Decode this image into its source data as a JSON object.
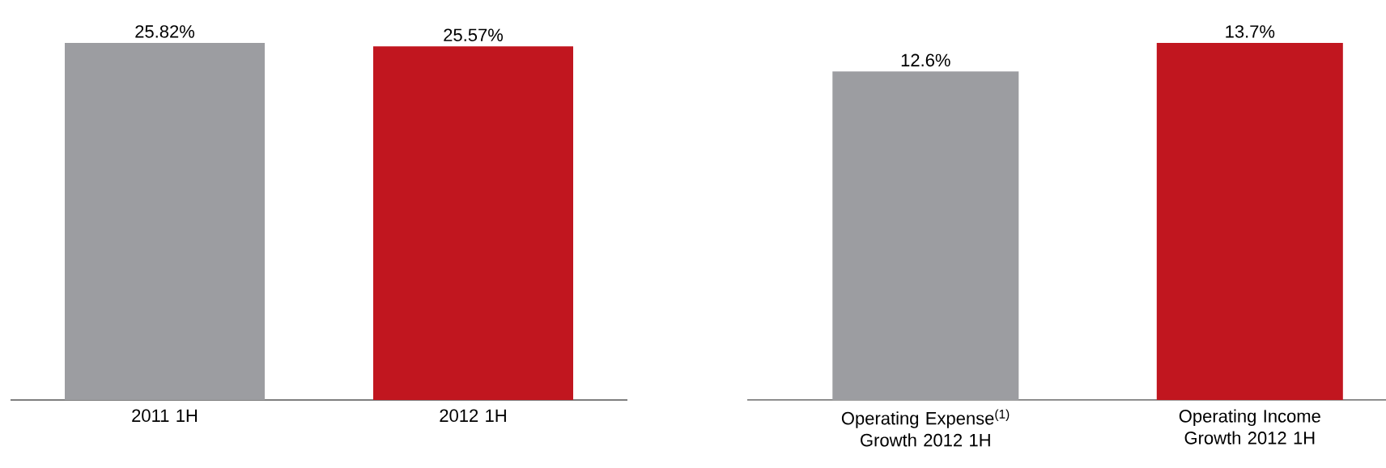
{
  "chart_data": [
    {
      "type": "bar",
      "categories": [
        "2011 1H",
        "2012 1H"
      ],
      "values": [
        25.82,
        25.57
      ],
      "colors": [
        "#9c9da1",
        "#c1161f"
      ],
      "value_labels": [
        "25.82%",
        "25.57%"
      ]
    },
    {
      "type": "bar",
      "categories": [
        "Operating Expense$^{(1)}$ Growth 2012 1H",
        "Operating Income Growth 2012 1H"
      ],
      "values": [
        12.6,
        13.7
      ],
      "colors": [
        "#9c9da1",
        "#c1161f"
      ],
      "value_labels": [
        "12.6%",
        "13.7%"
      ]
    }
  ]
}
